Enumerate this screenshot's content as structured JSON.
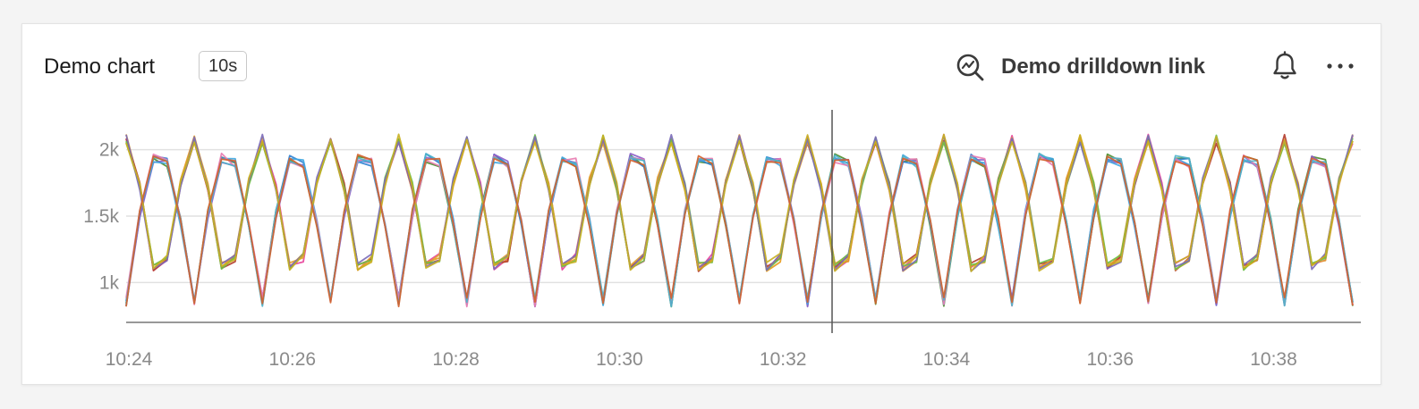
{
  "header": {
    "title": "Demo chart",
    "interval_badge": "10s",
    "drilldown_label": "Demo drilldown link",
    "drilldown_icon": "zoom-trend-icon",
    "alert_icon": "bell-icon",
    "menu_icon": "more-horizontal-icon"
  },
  "chart_data": {
    "type": "line",
    "title": "Demo chart",
    "xlabel": "",
    "ylabel": "",
    "x_range": [
      "10:23:58",
      "10:39:04"
    ],
    "ylim": [
      700,
      2300
    ],
    "y_ticks": [
      1000,
      1500,
      2000
    ],
    "y_tick_labels": [
      "1k",
      "1.5k",
      "2k"
    ],
    "x_ticks": [
      "10:24",
      "10:26",
      "10:28",
      "10:30",
      "10:32",
      "10:34",
      "10:36",
      "10:38"
    ],
    "grid": true,
    "legend": "none",
    "cursor_time": "10:32:36",
    "series_colors": [
      "#e8409a",
      "#4a8c2a",
      "#e89a1a",
      "#2c7fd1",
      "#b33a2a",
      "#8a5cc8",
      "#e0a030",
      "#3fa6e0",
      "#6bbf4a",
      "#e87ab0",
      "#7a6ab8",
      "#4fb3c8",
      "#c8b020",
      "#d4602a"
    ],
    "group_a_phase": "high",
    "group_b_phase": "low",
    "cycle_period_seconds": 50,
    "peak_value_approx": 2100,
    "trough_value_approx": 820,
    "crossing_value_approx": 1650
  }
}
